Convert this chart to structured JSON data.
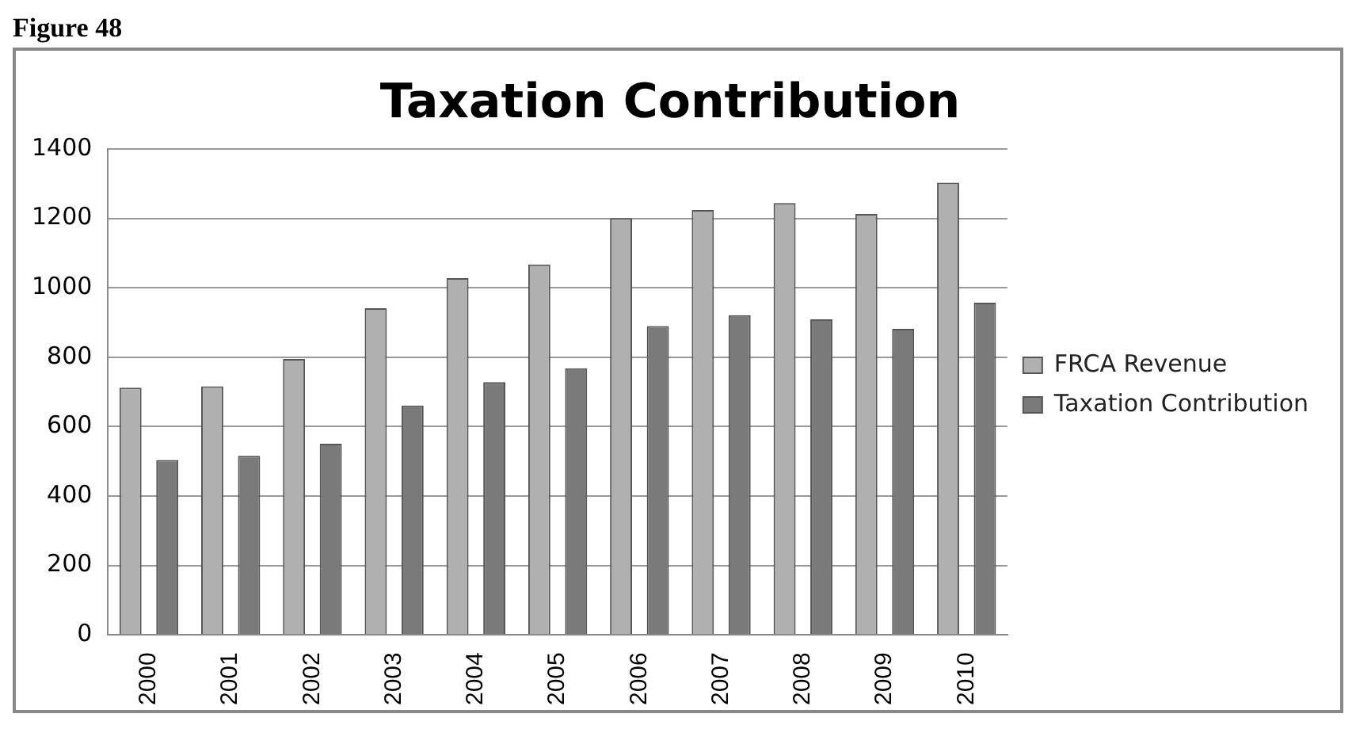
{
  "chart_data": {
    "type": "bar",
    "title": "Taxation Contribution",
    "annotations": [
      "Figure 48"
    ],
    "categories": [
      "2000",
      "2001",
      "2002",
      "2003",
      "2004",
      "2005",
      "2006",
      "2007",
      "2008",
      "2009",
      "2010"
    ],
    "series": [
      {
        "name": "FRCA Revenue",
        "color": "#b0b0b0",
        "values": [
          712,
          716,
          795,
          941,
          1028,
          1067,
          1201,
          1224,
          1244,
          1213,
          1303
        ]
      },
      {
        "name": "Taxation Contribution",
        "color": "#7a7a7a",
        "values": [
          504,
          516,
          551,
          661,
          728,
          768,
          890,
          921,
          909,
          882,
          957
        ]
      }
    ],
    "ylim": [
      0,
      1400
    ],
    "yticks": [
      0,
      200,
      400,
      600,
      800,
      1000,
      1200,
      1400
    ],
    "grid": "y",
    "legend": "right"
  }
}
